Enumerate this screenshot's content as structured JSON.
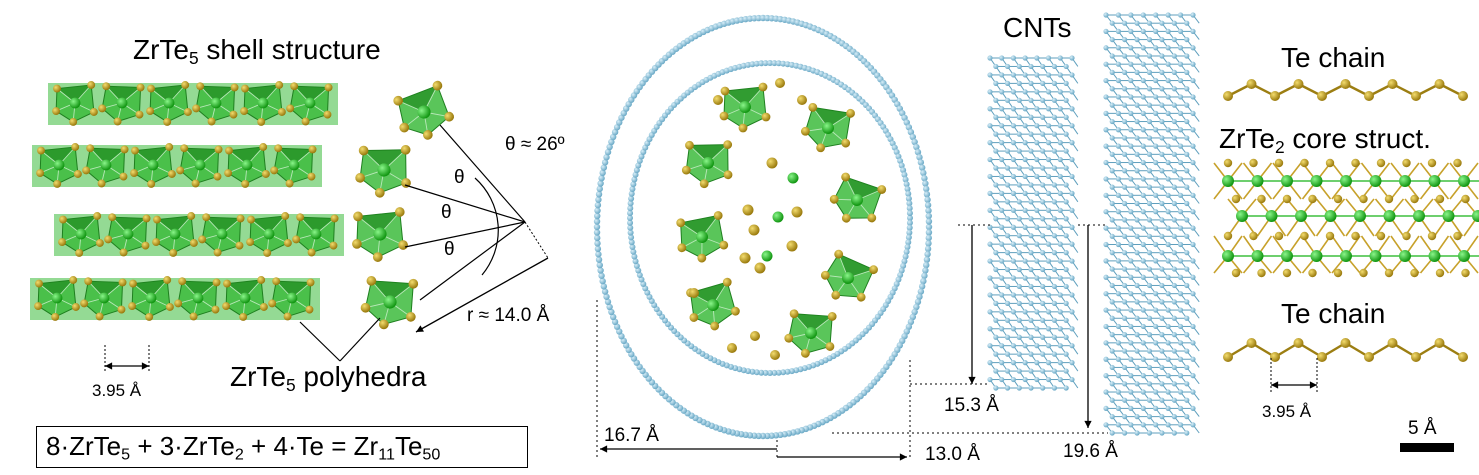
{
  "labels": {
    "shell_title_pre": "ZrTe",
    "shell_title_sub": "5",
    "shell_title_post": " shell structure",
    "polyhedra_pre": "ZrTe",
    "polyhedra_sub": "5",
    "polyhedra_post": " polyhedra",
    "theta_symbol": "θ",
    "theta_value": "θ ≈ 26º",
    "radius_value": "r ≈ 14.0 Å",
    "spacing_left": "3.95 Å",
    "spacing_right": "3.95 Å",
    "cnts": "CNTs",
    "te_chain_top": "Te chain",
    "te_chain_bottom": "Te chain",
    "core_pre": "ZrTe",
    "core_sub": "2",
    "core_post": " core struct.",
    "dim_16_7": "16.7 Å",
    "dim_13_0": "13.0 Å",
    "dim_15_3": "15.3 Å",
    "dim_19_6": "19.6 Å",
    "scale": "5 Å"
  },
  "equation": {
    "t1_pre": "8·ZrTe",
    "t1_sub": "5",
    "t2_pre": " + 3·ZrTe",
    "t2_sub": "2",
    "t3": " + 4·Te = Zr",
    "t4_sub": "11",
    "t5_pre": "Te",
    "t5_sub": "50"
  },
  "colors": {
    "zr_green": "#22b022",
    "polyhedron_fill": "#3dbb3d",
    "te_gold": "#b8951a",
    "carbon_blue": "#8ec5dc",
    "text": "#000000"
  }
}
